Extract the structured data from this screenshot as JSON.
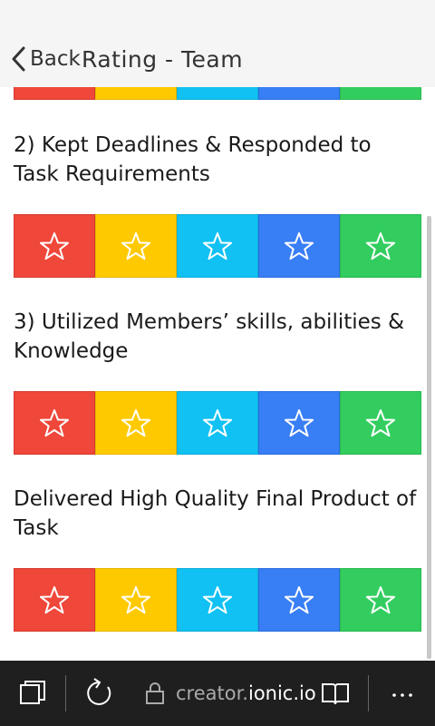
{
  "header": {
    "back_label": "Back",
    "title": "Rating - Team"
  },
  "questions": [
    {
      "text": "2) Kept Deadlines & Responded to Task Requirements"
    },
    {
      "text": "3) Utilized Members’ skills, abilities & Knowledge"
    },
    {
      "text": "Delivered High Quality Final Product of Task"
    }
  ],
  "rating_colors": [
    "#ef473a",
    "#ffc900",
    "#11c1f3",
    "#387ef5",
    "#33cd5f"
  ],
  "browser": {
    "url_prefix": "creator.",
    "url_domain": "ionic.io",
    "icons": [
      "tabs-icon",
      "refresh-icon",
      "lock-icon",
      "reading-view-icon",
      "more-icon"
    ]
  }
}
